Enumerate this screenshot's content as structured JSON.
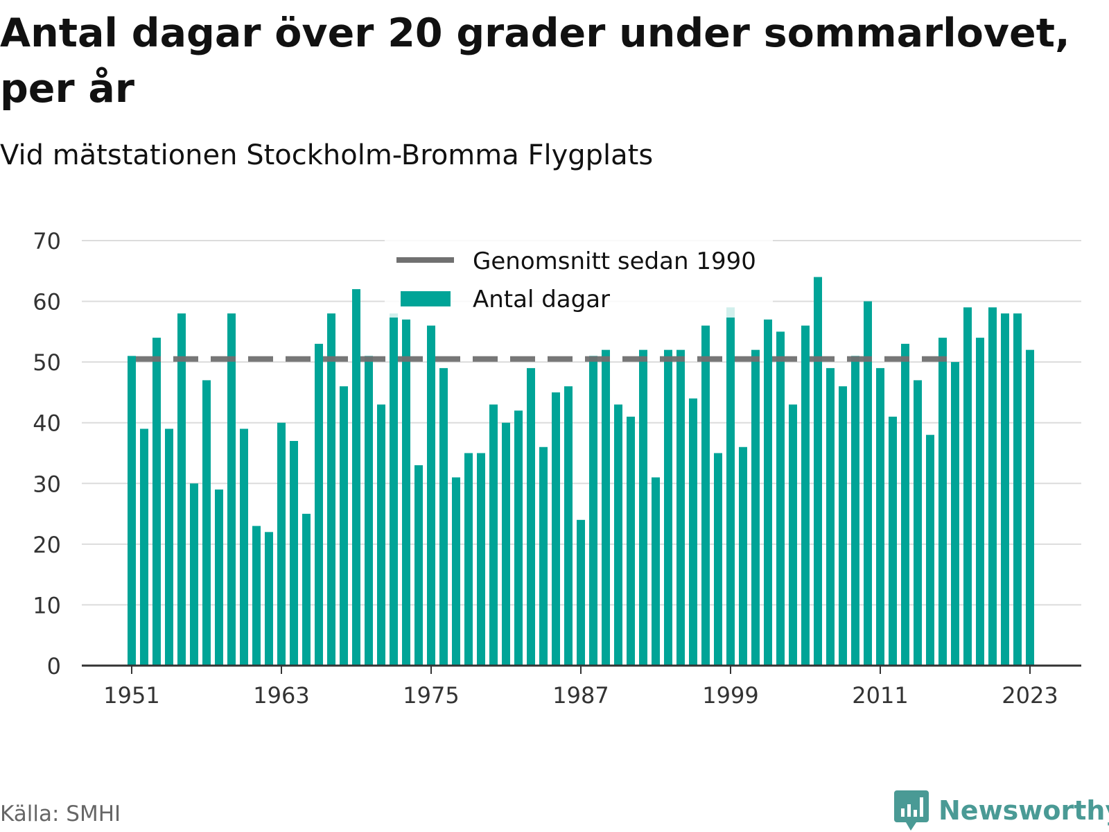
{
  "header": {
    "title": "Antal dagar över 20 grader under sommarlovet, per år",
    "subtitle": "Vid mätstationen Stockholm-Bromma Flygplats"
  },
  "footer": {
    "source": "Källa: SMHI",
    "brand": "Newsworthy",
    "brand_icon": "bar-chart-speech-bubble-icon"
  },
  "colors": {
    "bar": "#00a497",
    "average_line": "#707070",
    "grid": "#dcdcdc",
    "axis": "#333333",
    "brand": "#4a9a95"
  },
  "chart_data": {
    "type": "bar",
    "x": [
      1951,
      1952,
      1953,
      1954,
      1955,
      1956,
      1957,
      1958,
      1959,
      1960,
      1961,
      1962,
      1963,
      1964,
      1965,
      1966,
      1967,
      1968,
      1969,
      1970,
      1971,
      1972,
      1973,
      1974,
      1975,
      1976,
      1977,
      1978,
      1979,
      1980,
      1981,
      1982,
      1983,
      1984,
      1985,
      1986,
      1987,
      1988,
      1989,
      1990,
      1991,
      1992,
      1993,
      1994,
      1995,
      1996,
      1997,
      1998,
      1999,
      2000,
      2001,
      2002,
      2003,
      2004,
      2005,
      2006,
      2007,
      2008,
      2009,
      2010,
      2011,
      2012,
      2013,
      2014,
      2015,
      2016,
      2017,
      2018,
      2019,
      2020,
      2021,
      2022,
      2023
    ],
    "series": [
      {
        "name": "Antal dagar",
        "values": [
          51,
          39,
          54,
          39,
          58,
          30,
          47,
          29,
          58,
          39,
          23,
          22,
          40,
          37,
          25,
          53,
          58,
          46,
          62,
          51,
          43,
          58,
          57,
          33,
          56,
          49,
          31,
          35,
          35,
          43,
          40,
          42,
          49,
          36,
          45,
          46,
          24,
          51,
          52,
          43,
          41,
          52,
          31,
          52,
          52,
          44,
          56,
          35,
          59,
          36,
          52,
          57,
          55,
          43,
          56,
          64,
          49,
          46,
          51,
          60,
          49,
          41,
          53,
          47,
          38,
          54,
          50,
          59,
          54,
          59,
          58,
          58,
          52
        ]
      },
      {
        "name": "Genomsnitt sedan 1990",
        "value": 50.5
      }
    ],
    "xticks": [
      "1951",
      "1963",
      "1975",
      "1987",
      "1999",
      "2011",
      "2023"
    ],
    "yticks": [
      "0",
      "10",
      "20",
      "30",
      "40",
      "50",
      "60",
      "70"
    ],
    "ylim": [
      0,
      70
    ],
    "grid": true,
    "legend_placement": "top-center"
  }
}
